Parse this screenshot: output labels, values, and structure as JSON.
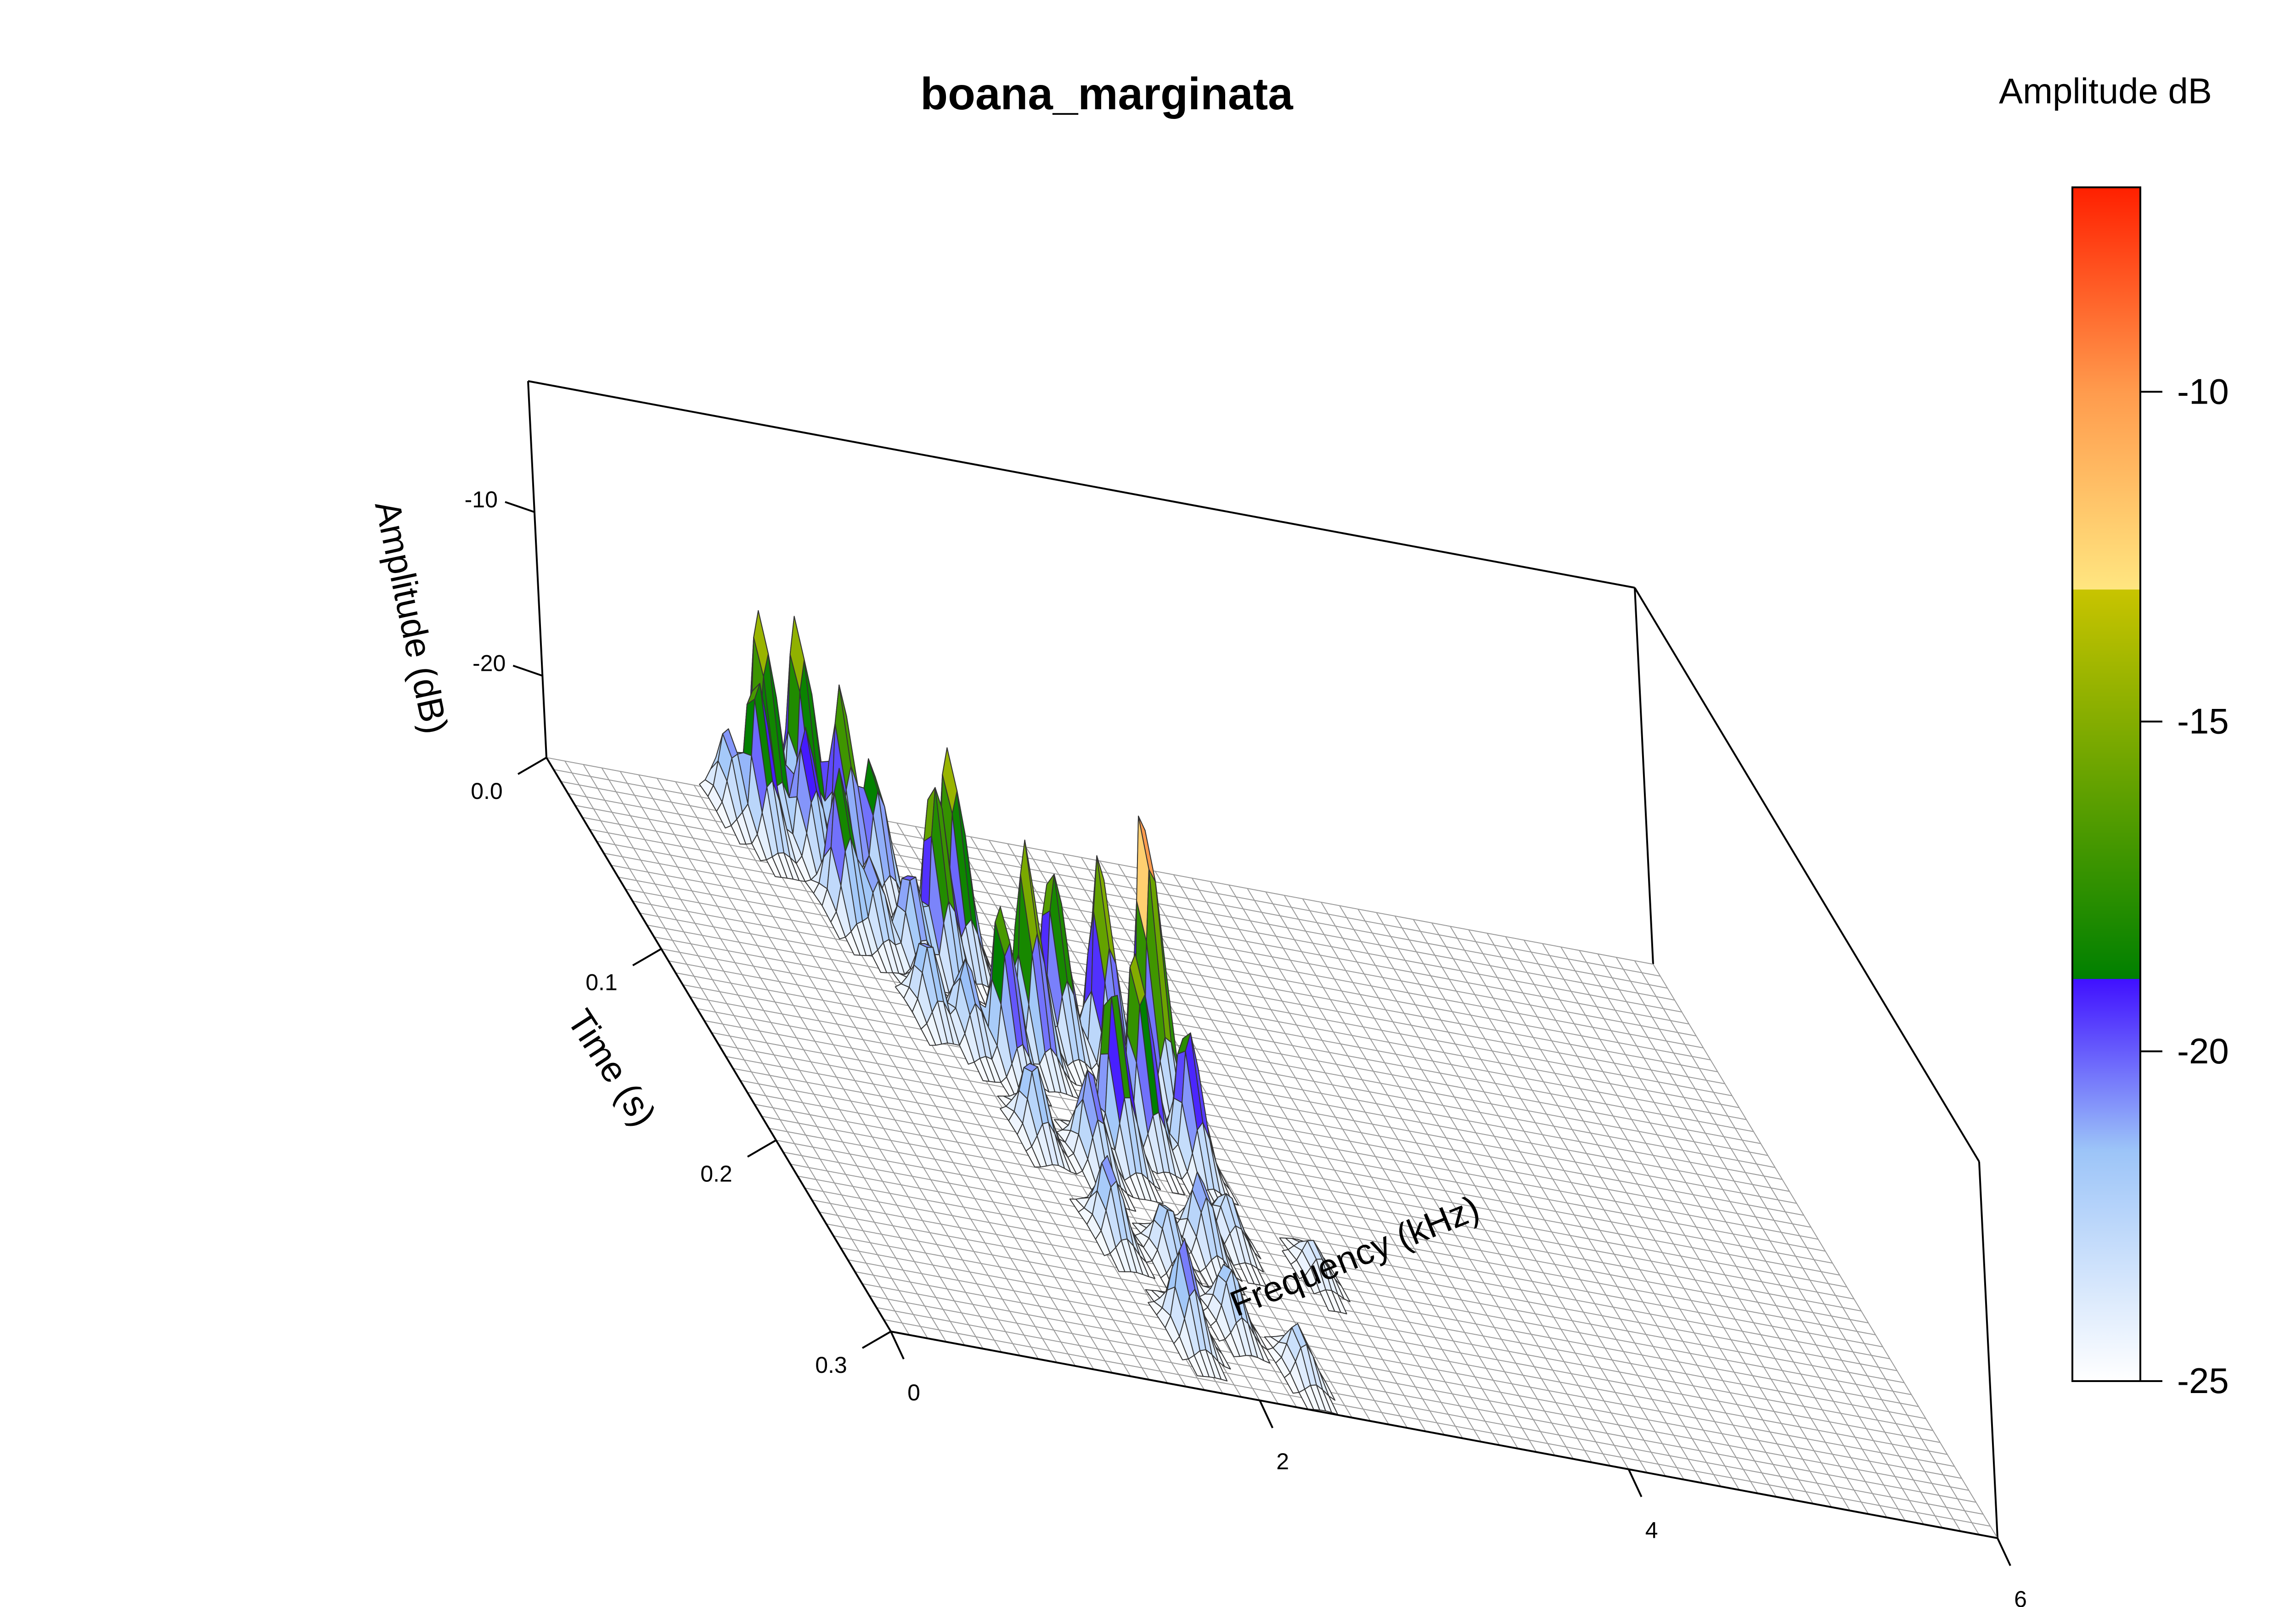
{
  "chart_data": {
    "type": "surface3d",
    "title": "boana_marginata",
    "xlabel": "Frequency (kHz)",
    "ylabel": "Time (s)",
    "zlabel": "Amplitude (dB)",
    "xlim": [
      0,
      6
    ],
    "ylim": [
      0,
      0.3
    ],
    "zlim": [
      -25,
      -2
    ],
    "x_ticks": [
      "0",
      "2",
      "4",
      "6"
    ],
    "y_ticks": [
      "0.0",
      "0.1",
      "0.2",
      "0.3"
    ],
    "z_ticks": [
      "-10",
      "-20"
    ],
    "x_tick_values": [
      0,
      2,
      4,
      6
    ],
    "y_tick_values": [
      0,
      0.1,
      0.2,
      0.3
    ],
    "z_tick_values": [
      -10,
      -20
    ],
    "colorbar": {
      "title": "Amplitude dB",
      "ticks": [
        "-10",
        "-15",
        "-20",
        "-25"
      ],
      "tick_values": [
        -10,
        -15,
        -20,
        -25
      ],
      "range": [
        -25,
        -6.9
      ],
      "stops": [
        {
          "value": -25,
          "color": "#ffffff"
        },
        {
          "value": -21.5,
          "color": "#9cc4f8"
        },
        {
          "value": -18.9,
          "color": "#4010ff"
        },
        {
          "value": -18.9,
          "color": "#008000"
        },
        {
          "value": -13,
          "color": "#c8c400"
        },
        {
          "value": -13,
          "color": "#ffe680"
        },
        {
          "value": -10,
          "color": "#ff9b4d"
        },
        {
          "value": -6.9,
          "color": "#ff2000"
        }
      ]
    },
    "peaks": [
      {
        "x": 0.95,
        "y": 0.01,
        "z": -20
      },
      {
        "x": 1.05,
        "y": 0.02,
        "z": -15
      },
      {
        "x": 1.15,
        "y": 0.01,
        "z": -12
      },
      {
        "x": 1.25,
        "y": 0.03,
        "z": -17
      },
      {
        "x": 1.35,
        "y": 0.01,
        "z": -12
      },
      {
        "x": 1.45,
        "y": 0.03,
        "z": -14
      },
      {
        "x": 1.55,
        "y": 0.04,
        "z": -17
      },
      {
        "x": 1.25,
        "y": 0.06,
        "z": -16
      },
      {
        "x": 1.35,
        "y": 0.07,
        "z": -20
      },
      {
        "x": 1.5,
        "y": 0.08,
        "z": -19
      },
      {
        "x": 1.65,
        "y": 0.08,
        "z": -13
      },
      {
        "x": 1.8,
        "y": 0.07,
        "z": -12
      },
      {
        "x": 1.4,
        "y": 0.11,
        "z": -20
      },
      {
        "x": 1.55,
        "y": 0.12,
        "z": -20
      },
      {
        "x": 1.7,
        "y": 0.13,
        "z": -15
      },
      {
        "x": 1.9,
        "y": 0.12,
        "z": -12
      },
      {
        "x": 2.1,
        "y": 0.11,
        "z": -14
      },
      {
        "x": 2.3,
        "y": 0.12,
        "z": -12
      },
      {
        "x": 2.5,
        "y": 0.13,
        "z": -7
      },
      {
        "x": 1.6,
        "y": 0.17,
        "z": -20
      },
      {
        "x": 1.85,
        "y": 0.18,
        "z": -19
      },
      {
        "x": 2.05,
        "y": 0.17,
        "z": -14
      },
      {
        "x": 2.25,
        "y": 0.16,
        "z": -13
      },
      {
        "x": 2.45,
        "y": 0.17,
        "z": -16
      },
      {
        "x": 1.7,
        "y": 0.22,
        "z": -20
      },
      {
        "x": 1.95,
        "y": 0.23,
        "z": -21
      },
      {
        "x": 2.2,
        "y": 0.22,
        "z": -20
      },
      {
        "x": 2.4,
        "y": 0.21,
        "z": -22
      },
      {
        "x": 2.8,
        "y": 0.22,
        "z": -23
      },
      {
        "x": 1.8,
        "y": 0.27,
        "z": -19
      },
      {
        "x": 2.1,
        "y": 0.26,
        "z": -21
      },
      {
        "x": 2.35,
        "y": 0.28,
        "z": -22
      }
    ]
  }
}
